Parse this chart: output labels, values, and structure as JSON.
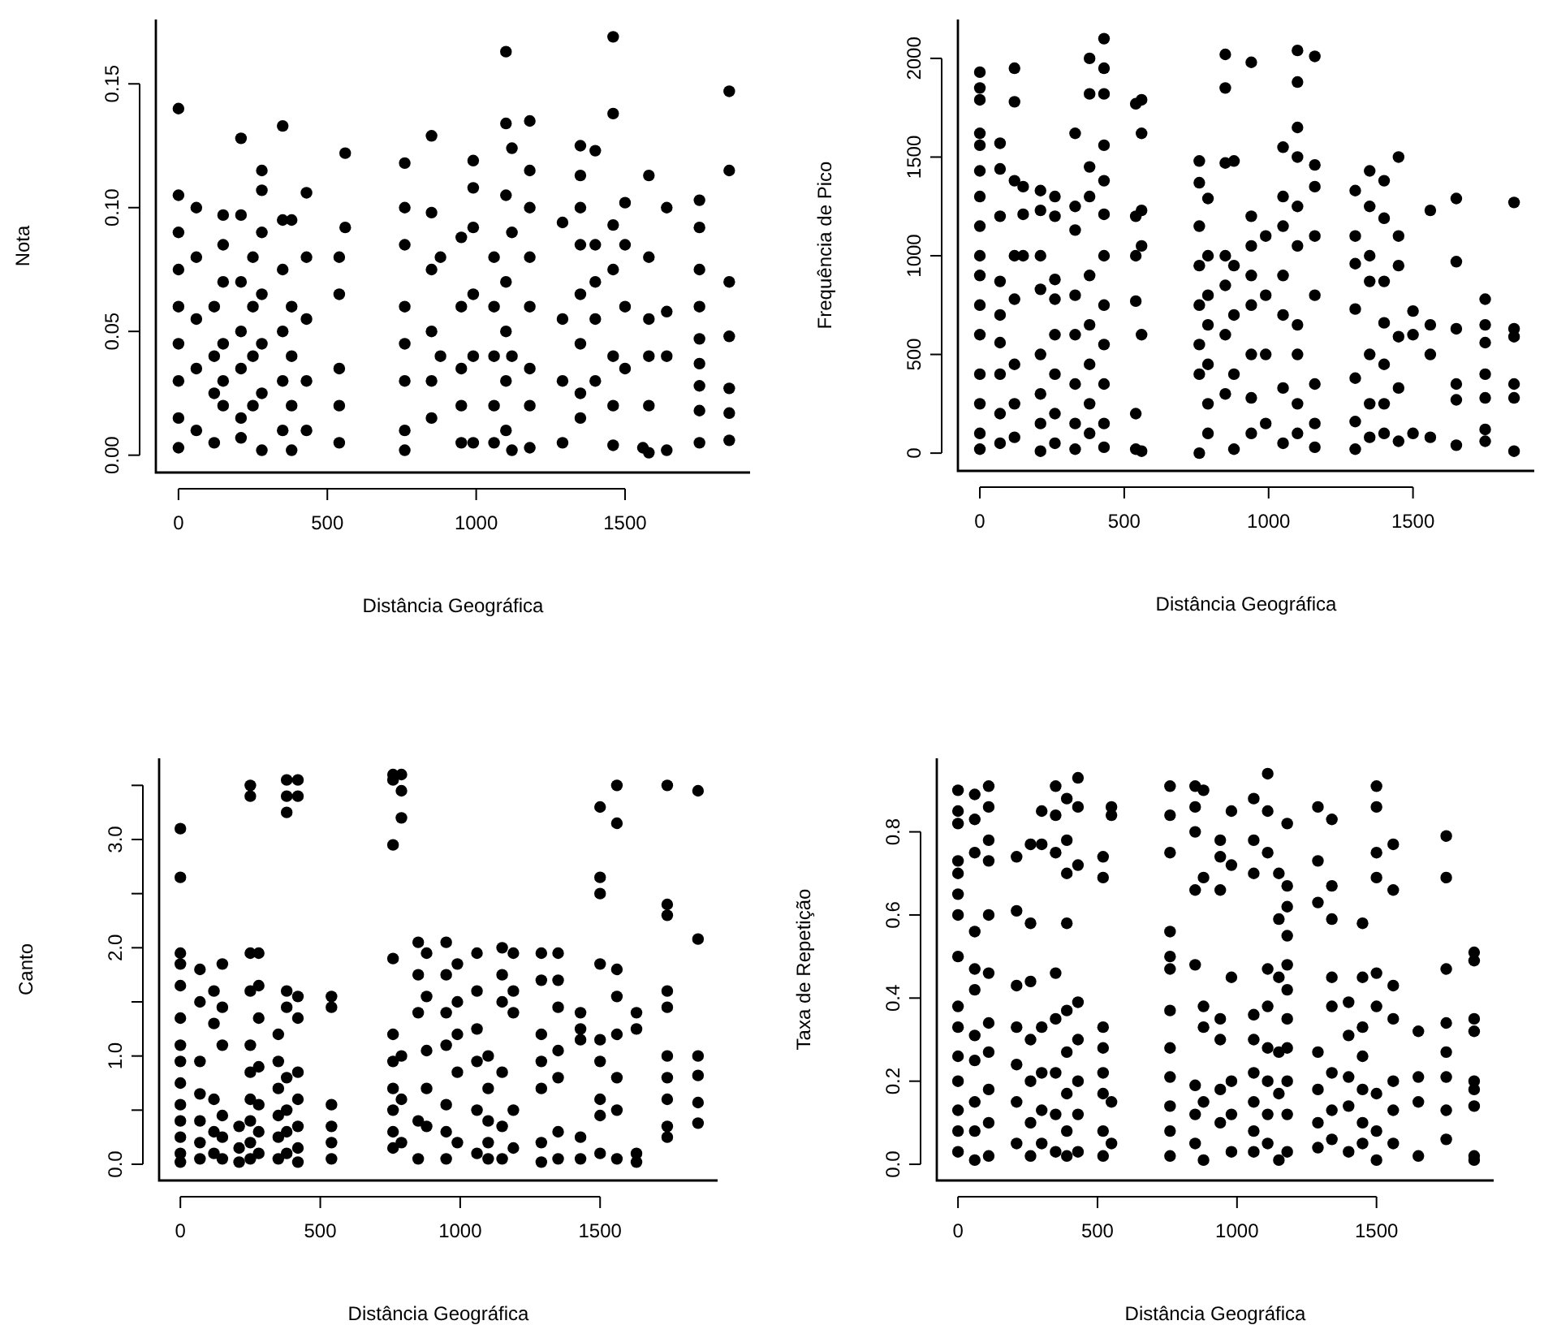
{
  "chart_data": [
    {
      "type": "scatter",
      "xlabel": "Distância Geográfica",
      "ylabel": "Nota",
      "xlim": [
        -76,
        1920
      ],
      "ylim": [
        -0.007,
        0.176
      ],
      "xticks": [
        0,
        500,
        1000,
        1500
      ],
      "yticks": [
        {
          "value": 0,
          "label": "0.00"
        },
        {
          "value": 0.05,
          "label": "0.05"
        },
        {
          "value": 0.1,
          "label": "0.10"
        },
        {
          "value": 0.15,
          "label": "0.15"
        }
      ],
      "marker": "circle",
      "color": "#000000",
      "x": [
        0,
        0,
        0,
        0,
        0,
        0,
        0,
        0,
        0,
        60,
        60,
        60,
        60,
        60,
        120,
        120,
        120,
        120,
        150,
        150,
        150,
        150,
        150,
        150,
        210,
        210,
        210,
        210,
        210,
        210,
        210,
        250,
        250,
        250,
        250,
        280,
        280,
        280,
        280,
        280,
        280,
        280,
        350,
        350,
        350,
        350,
        350,
        350,
        380,
        380,
        380,
        380,
        380,
        430,
        430,
        430,
        430,
        430,
        540,
        540,
        540,
        540,
        540,
        560,
        560,
        760,
        760,
        760,
        760,
        760,
        760,
        760,
        760,
        850,
        850,
        850,
        850,
        850,
        850,
        880,
        880,
        950,
        950,
        950,
        950,
        950,
        990,
        990,
        990,
        990,
        990,
        990,
        1060,
        1060,
        1060,
        1060,
        1060,
        1100,
        1100,
        1100,
        1100,
        1100,
        1100,
        1100,
        1120,
        1120,
        1120,
        1120,
        1180,
        1180,
        1180,
        1180,
        1180,
        1180,
        1180,
        1180,
        1290,
        1290,
        1290,
        1290,
        1350,
        1350,
        1350,
        1350,
        1350,
        1350,
        1350,
        1350,
        1400,
        1400,
        1400,
        1400,
        1400,
        1460,
        1460,
        1460,
        1460,
        1460,
        1460,
        1460,
        1500,
        1500,
        1500,
        1500,
        1560,
        1580,
        1580,
        1580,
        1580,
        1580,
        1580,
        1640,
        1640,
        1640,
        1640,
        1750,
        1750,
        1750,
        1750,
        1750,
        1750,
        1750,
        1750,
        1750,
        1850,
        1850,
        1850,
        1850,
        1850,
        1850,
        1850
      ],
      "values": [
        0.14,
        0.105,
        0.09,
        0.075,
        0.06,
        0.045,
        0.03,
        0.015,
        0.003,
        0.1,
        0.08,
        0.055,
        0.035,
        0.01,
        0.06,
        0.04,
        0.025,
        0.005,
        0.097,
        0.085,
        0.07,
        0.045,
        0.03,
        0.02,
        0.128,
        0.097,
        0.07,
        0.05,
        0.035,
        0.015,
        0.007,
        0.08,
        0.06,
        0.04,
        0.02,
        0.115,
        0.107,
        0.09,
        0.065,
        0.045,
        0.025,
        0.002,
        0.133,
        0.095,
        0.075,
        0.05,
        0.03,
        0.01,
        0.095,
        0.06,
        0.04,
        0.02,
        0.002,
        0.106,
        0.08,
        0.055,
        0.03,
        0.01,
        0.08,
        0.065,
        0.035,
        0.02,
        0.005,
        0.122,
        0.092,
        0.118,
        0.1,
        0.085,
        0.06,
        0.045,
        0.03,
        0.01,
        0.002,
        0.129,
        0.098,
        0.075,
        0.05,
        0.03,
        0.015,
        0.08,
        0.04,
        0.088,
        0.06,
        0.035,
        0.02,
        0.005,
        0.119,
        0.108,
        0.092,
        0.065,
        0.04,
        0.005,
        0.08,
        0.06,
        0.04,
        0.02,
        0.005,
        0.163,
        0.134,
        0.105,
        0.07,
        0.05,
        0.03,
        0.01,
        0.124,
        0.09,
        0.04,
        0.002,
        0.135,
        0.115,
        0.1,
        0.08,
        0.06,
        0.035,
        0.02,
        0.003,
        0.094,
        0.055,
        0.03,
        0.005,
        0.125,
        0.113,
        0.1,
        0.085,
        0.065,
        0.045,
        0.025,
        0.015,
        0.123,
        0.085,
        0.07,
        0.055,
        0.03,
        0.169,
        0.138,
        0.093,
        0.075,
        0.04,
        0.02,
        0.004,
        0.102,
        0.085,
        0.06,
        0.035,
        0.003,
        0.113,
        0.08,
        0.055,
        0.04,
        0.02,
        0.001,
        0.1,
        0.058,
        0.04,
        0.002,
        0.103,
        0.092,
        0.075,
        0.06,
        0.047,
        0.037,
        0.028,
        0.018,
        0.005,
        0.147,
        0.115,
        0.07,
        0.048,
        0.027,
        0.017,
        0.006
      ]
    },
    {
      "type": "scatter",
      "xlabel": "Distância Geográfica",
      "ylabel": "Frequência de Pico",
      "xlim": [
        -76,
        1920
      ],
      "ylim": [
        -90,
        2197
      ],
      "xticks": [
        0,
        500,
        1000,
        1500
      ],
      "yticks": [
        0,
        500,
        1000,
        1500,
        2000
      ],
      "marker": "circle",
      "color": "#000000",
      "x": [
        0,
        0,
        0,
        0,
        0,
        0,
        0,
        0,
        0,
        0,
        0,
        0,
        0,
        0,
        0,
        0,
        70,
        70,
        70,
        70,
        70,
        70,
        70,
        70,
        70,
        120,
        120,
        120,
        120,
        120,
        120,
        120,
        120,
        150,
        150,
        150,
        210,
        210,
        210,
        210,
        210,
        210,
        210,
        210,
        260,
        260,
        260,
        260,
        260,
        260,
        260,
        260,
        330,
        330,
        330,
        330,
        330,
        330,
        330,
        330,
        380,
        380,
        380,
        380,
        380,
        380,
        380,
        380,
        380,
        430,
        430,
        430,
        430,
        430,
        430,
        430,
        430,
        430,
        430,
        430,
        430,
        540,
        540,
        540,
        540,
        540,
        540,
        560,
        560,
        560,
        560,
        560,
        560,
        760,
        760,
        760,
        760,
        760,
        760,
        760,
        760,
        790,
        790,
        790,
        790,
        790,
        790,
        790,
        850,
        850,
        850,
        850,
        850,
        850,
        850,
        880,
        880,
        880,
        880,
        880,
        940,
        940,
        940,
        940,
        940,
        940,
        940,
        940,
        990,
        990,
        990,
        990,
        1050,
        1050,
        1050,
        1050,
        1050,
        1050,
        1050,
        1100,
        1100,
        1100,
        1100,
        1100,
        1100,
        1100,
        1100,
        1100,
        1100,
        1160,
        1160,
        1160,
        1160,
        1160,
        1160,
        1160,
        1160,
        1300,
        1300,
        1300,
        1300,
        1300,
        1300,
        1300,
        1350,
        1350,
        1350,
        1350,
        1350,
        1350,
        1350,
        1400,
        1400,
        1400,
        1400,
        1400,
        1400,
        1400,
        1450,
        1450,
        1450,
        1450,
        1450,
        1450,
        1500,
        1500,
        1500,
        1560,
        1560,
        1560,
        1560,
        1650,
        1650,
        1650,
        1650,
        1650,
        1650,
        1750,
        1750,
        1750,
        1750,
        1750,
        1750,
        1750,
        1850,
        1850,
        1850,
        1850,
        1850,
        1850
      ],
      "values": [
        1930,
        1850,
        1790,
        1620,
        1560,
        1430,
        1300,
        1150,
        1000,
        900,
        750,
        600,
        400,
        250,
        100,
        20,
        1570,
        1440,
        1200,
        870,
        700,
        560,
        400,
        200,
        50,
        1950,
        1780,
        1380,
        1000,
        780,
        450,
        250,
        80,
        1350,
        1210,
        1000,
        1330,
        1230,
        1000,
        830,
        500,
        300,
        150,
        10,
        1300,
        1200,
        880,
        780,
        600,
        400,
        200,
        50,
        1620,
        1250,
        1130,
        800,
        600,
        350,
        150,
        20,
        2000,
        1820,
        1450,
        1300,
        900,
        650,
        450,
        250,
        100,
        2100,
        1950,
        1820,
        1560,
        1380,
        1210,
        1000,
        750,
        550,
        350,
        150,
        30,
        1770,
        1200,
        1000,
        770,
        200,
        20,
        1790,
        1620,
        1230,
        1050,
        600,
        10,
        1480,
        1370,
        1150,
        950,
        750,
        550,
        400,
        0,
        1290,
        1000,
        800,
        650,
        450,
        250,
        100,
        2020,
        1850,
        1470,
        1000,
        850,
        600,
        300,
        1480,
        950,
        700,
        400,
        20,
        1980,
        1200,
        1050,
        900,
        750,
        500,
        280,
        100,
        1100,
        800,
        500,
        150,
        1550,
        1300,
        1150,
        900,
        700,
        330,
        50,
        2040,
        1880,
        1650,
        1500,
        1250,
        1050,
        650,
        500,
        250,
        100,
        2010,
        1460,
        1350,
        1100,
        800,
        350,
        150,
        30,
        1330,
        1100,
        960,
        730,
        380,
        160,
        20,
        1430,
        1250,
        1000,
        870,
        500,
        250,
        80,
        1380,
        1190,
        870,
        660,
        450,
        250,
        100,
        1500,
        1100,
        950,
        590,
        330,
        60,
        720,
        600,
        100,
        1230,
        650,
        500,
        80,
        1290,
        970,
        630,
        350,
        270,
        40,
        780,
        650,
        560,
        400,
        280,
        120,
        60,
        1270,
        630,
        590,
        350,
        280,
        10
      ]
    },
    {
      "type": "scatter",
      "xlabel": "Distância Geográfica",
      "ylabel": "Canto",
      "xlim": [
        -76,
        1920
      ],
      "ylim": [
        -0.15,
        3.75
      ],
      "xticks": [
        0,
        500,
        1000,
        1500
      ],
      "yticks": [
        {
          "value": 0,
          "label": "0.0"
        },
        {
          "value": 0.5,
          "label": null
        },
        {
          "value": 1,
          "label": "1.0"
        },
        {
          "value": 1.5,
          "label": null
        },
        {
          "value": 2,
          "label": "2.0"
        },
        {
          "value": 2.5,
          "label": null
        },
        {
          "value": 3,
          "label": "3.0"
        },
        {
          "value": 3.5,
          "label": null
        }
      ],
      "marker": "circle",
      "color": "#000000",
      "x": [
        0,
        0,
        0,
        0,
        0,
        0,
        0,
        0,
        0,
        0,
        0,
        0,
        0,
        0,
        70,
        70,
        70,
        70,
        70,
        70,
        70,
        120,
        120,
        120,
        120,
        120,
        150,
        150,
        150,
        150,
        150,
        150,
        210,
        210,
        210,
        250,
        250,
        250,
        250,
        250,
        250,
        250,
        250,
        250,
        250,
        280,
        280,
        280,
        280,
        280,
        280,
        280,
        350,
        350,
        350,
        350,
        350,
        350,
        380,
        380,
        380,
        380,
        380,
        380,
        380,
        380,
        380,
        420,
        420,
        420,
        420,
        420,
        420,
        420,
        420,
        420,
        540,
        540,
        540,
        540,
        540,
        540,
        760,
        760,
        760,
        760,
        760,
        760,
        760,
        760,
        760,
        760,
        790,
        790,
        790,
        790,
        790,
        790,
        850,
        850,
        850,
        850,
        850,
        880,
        880,
        880,
        880,
        880,
        950,
        950,
        950,
        950,
        950,
        950,
        950,
        990,
        990,
        990,
        990,
        990,
        1060,
        1060,
        1060,
        1060,
        1060,
        1060,
        1100,
        1100,
        1100,
        1100,
        1100,
        1150,
        1150,
        1150,
        1150,
        1150,
        1150,
        1190,
        1190,
        1190,
        1190,
        1190,
        1290,
        1290,
        1290,
        1290,
        1290,
        1290,
        1290,
        1350,
        1350,
        1350,
        1350,
        1350,
        1350,
        1350,
        1430,
        1430,
        1430,
        1430,
        1430,
        1500,
        1500,
        1500,
        1500,
        1500,
        1500,
        1500,
        1500,
        1500,
        1560,
        1560,
        1560,
        1560,
        1560,
        1560,
        1560,
        1560,
        1630,
        1630,
        1630,
        1630,
        1740,
        1740,
        1740,
        1740,
        1740,
        1740,
        1740,
        1740,
        1740,
        1740,
        1850,
        1850,
        1850,
        1850,
        1850,
        1850
      ],
      "values": [
        3.1,
        2.65,
        1.95,
        1.85,
        1.65,
        1.35,
        1.1,
        0.95,
        0.75,
        0.55,
        0.4,
        0.25,
        0.1,
        0.02,
        1.8,
        1.5,
        0.95,
        0.65,
        0.4,
        0.2,
        0.05,
        1.6,
        1.3,
        0.6,
        0.3,
        0.1,
        1.85,
        1.45,
        1.1,
        0.45,
        0.25,
        0.05,
        0.35,
        0.15,
        0.02,
        3.5,
        3.4,
        1.95,
        1.6,
        1.1,
        0.85,
        0.6,
        0.4,
        0.2,
        0.05,
        1.95,
        1.65,
        1.35,
        0.9,
        0.55,
        0.3,
        0.1,
        1.2,
        0.95,
        0.7,
        0.45,
        0.25,
        0.05,
        3.55,
        3.4,
        3.25,
        1.6,
        1.45,
        0.8,
        0.5,
        0.3,
        0.1,
        3.55,
        3.4,
        1.55,
        1.35,
        0.85,
        0.6,
        0.35,
        0.15,
        0.02,
        1.55,
        1.45,
        0.55,
        0.35,
        0.2,
        0.05,
        3.6,
        3.55,
        2.95,
        1.9,
        1.2,
        0.95,
        0.7,
        0.5,
        0.3,
        0.15,
        3.6,
        3.45,
        3.2,
        1.0,
        0.6,
        0.2,
        2.05,
        1.75,
        1.4,
        0.4,
        0.05,
        1.95,
        1.55,
        1.05,
        0.7,
        0.35,
        2.05,
        1.75,
        1.4,
        1.1,
        0.55,
        0.3,
        0.05,
        1.85,
        1.5,
        1.2,
        0.85,
        0.2,
        1.95,
        1.6,
        1.25,
        0.95,
        0.5,
        0.1,
        1.0,
        0.7,
        0.4,
        0.2,
        0.05,
        2.0,
        1.75,
        1.5,
        0.85,
        0.35,
        0.05,
        1.95,
        1.6,
        1.4,
        0.5,
        0.15,
        1.95,
        1.7,
        1.2,
        0.95,
        0.7,
        0.2,
        0.02,
        1.95,
        1.7,
        1.45,
        1.05,
        0.8,
        0.3,
        0.05,
        1.4,
        1.25,
        1.15,
        0.25,
        0.05,
        3.3,
        2.65,
        2.5,
        1.85,
        1.15,
        0.95,
        0.6,
        0.45,
        0.1,
        3.5,
        3.15,
        1.8,
        1.55,
        1.2,
        0.8,
        0.5,
        0.05,
        1.4,
        1.25,
        0.1,
        0.02,
        3.5,
        2.4,
        2.3,
        1.6,
        1.45,
        1.0,
        0.8,
        0.6,
        0.35,
        0.25,
        3.45,
        2.08,
        1.0,
        0.82,
        0.57,
        0.38
      ]
    },
    {
      "type": "scatter",
      "xlabel": "Distância Geográfica",
      "ylabel": "Taxa de Repetição",
      "xlim": [
        -76,
        1920
      ],
      "ylim": [
        -0.039,
        0.977
      ],
      "xticks": [
        0,
        500,
        1000,
        1500
      ],
      "yticks": [
        {
          "value": 0,
          "label": "0.0"
        },
        0.2,
        0.4,
        0.6,
        0.8
      ],
      "marker": "circle",
      "color": "#000000",
      "x": [
        0,
        0,
        0,
        0,
        0,
        0,
        0,
        0,
        0,
        0,
        0,
        0,
        0,
        0,
        0,
        60,
        60,
        60,
        60,
        60,
        60,
        60,
        60,
        60,
        60,
        60,
        110,
        110,
        110,
        110,
        110,
        110,
        110,
        110,
        110,
        110,
        110,
        210,
        210,
        210,
        210,
        210,
        210,
        210,
        260,
        260,
        260,
        260,
        260,
        260,
        260,
        300,
        300,
        300,
        300,
        300,
        300,
        350,
        350,
        350,
        350,
        350,
        350,
        350,
        350,
        390,
        390,
        390,
        390,
        390,
        390,
        390,
        390,
        390,
        430,
        430,
        430,
        430,
        430,
        430,
        430,
        430,
        520,
        520,
        520,
        520,
        520,
        520,
        520,
        520,
        550,
        550,
        550,
        550,
        760,
        760,
        760,
        760,
        760,
        760,
        760,
        760,
        760,
        760,
        760,
        760,
        850,
        850,
        850,
        850,
        850,
        850,
        850,
        850,
        880,
        880,
        880,
        880,
        880,
        880,
        940,
        940,
        940,
        940,
        940,
        940,
        940,
        980,
        980,
        980,
        980,
        980,
        980,
        1060,
        1060,
        1060,
        1060,
        1060,
        1060,
        1060,
        1060,
        1060,
        1110,
        1110,
        1110,
        1110,
        1110,
        1110,
        1110,
        1110,
        1110,
        1150,
        1150,
        1150,
        1150,
        1150,
        1150,
        1180,
        1180,
        1180,
        1180,
        1180,
        1180,
        1180,
        1180,
        1180,
        1180,
        1180,
        1290,
        1290,
        1290,
        1290,
        1290,
        1290,
        1290,
        1340,
        1340,
        1340,
        1340,
        1340,
        1340,
        1340,
        1340,
        1400,
        1400,
        1400,
        1400,
        1400,
        1450,
        1450,
        1450,
        1450,
        1450,
        1450,
        1450,
        1500,
        1500,
        1500,
        1500,
        1500,
        1500,
        1500,
        1500,
        1500,
        1560,
        1560,
        1560,
        1560,
        1560,
        1560,
        1560,
        1650,
        1650,
        1650,
        1650,
        1750,
        1750,
        1750,
        1750,
        1750,
        1750,
        1750,
        1750,
        1850,
        1850,
        1850,
        1850,
        1850,
        1850,
        1850,
        1850,
        1850
      ],
      "values": [
        0.9,
        0.85,
        0.82,
        0.73,
        0.7,
        0.65,
        0.6,
        0.5,
        0.38,
        0.33,
        0.26,
        0.2,
        0.13,
        0.08,
        0.03,
        0.89,
        0.83,
        0.75,
        0.56,
        0.47,
        0.42,
        0.31,
        0.25,
        0.15,
        0.08,
        0.01,
        0.91,
        0.86,
        0.78,
        0.73,
        0.6,
        0.46,
        0.34,
        0.27,
        0.18,
        0.1,
        0.02,
        0.74,
        0.61,
        0.43,
        0.33,
        0.24,
        0.15,
        0.05,
        0.77,
        0.58,
        0.44,
        0.3,
        0.2,
        0.1,
        0.02,
        0.85,
        0.77,
        0.33,
        0.22,
        0.13,
        0.05,
        0.91,
        0.84,
        0.75,
        0.46,
        0.35,
        0.22,
        0.12,
        0.03,
        0.88,
        0.78,
        0.7,
        0.58,
        0.37,
        0.27,
        0.17,
        0.08,
        0.02,
        0.93,
        0.86,
        0.72,
        0.39,
        0.3,
        0.2,
        0.12,
        0.03,
        0.74,
        0.69,
        0.33,
        0.28,
        0.22,
        0.17,
        0.08,
        0.02,
        0.86,
        0.84,
        0.15,
        0.05,
        0.91,
        0.84,
        0.75,
        0.56,
        0.5,
        0.47,
        0.37,
        0.28,
        0.21,
        0.14,
        0.08,
        0.02,
        0.91,
        0.86,
        0.8,
        0.66,
        0.48,
        0.19,
        0.12,
        0.05,
        0.9,
        0.69,
        0.38,
        0.33,
        0.15,
        0.01,
        0.78,
        0.74,
        0.66,
        0.35,
        0.3,
        0.18,
        0.1,
        0.85,
        0.72,
        0.45,
        0.2,
        0.12,
        0.03,
        0.88,
        0.78,
        0.7,
        0.36,
        0.3,
        0.22,
        0.15,
        0.08,
        0.03,
        0.94,
        0.85,
        0.75,
        0.47,
        0.38,
        0.28,
        0.2,
        0.12,
        0.05,
        0.7,
        0.59,
        0.45,
        0.27,
        0.17,
        0.01,
        0.82,
        0.67,
        0.62,
        0.55,
        0.48,
        0.42,
        0.35,
        0.28,
        0.2,
        0.12,
        0.03,
        0.86,
        0.73,
        0.63,
        0.27,
        0.18,
        0.1,
        0.04,
        0.83,
        0.67,
        0.59,
        0.45,
        0.38,
        0.22,
        0.13,
        0.06,
        0.39,
        0.31,
        0.21,
        0.14,
        0.03,
        0.58,
        0.45,
        0.33,
        0.26,
        0.18,
        0.1,
        0.05,
        0.91,
        0.86,
        0.75,
        0.69,
        0.46,
        0.38,
        0.17,
        0.08,
        0.01,
        0.77,
        0.66,
        0.43,
        0.35,
        0.2,
        0.13,
        0.05,
        0.32,
        0.21,
        0.15,
        0.02,
        0.79,
        0.69,
        0.47,
        0.34,
        0.27,
        0.21,
        0.13,
        0.06,
        0.51,
        0.49,
        0.35,
        0.32,
        0.2,
        0.18,
        0.14,
        0.02,
        0.01
      ]
    }
  ]
}
